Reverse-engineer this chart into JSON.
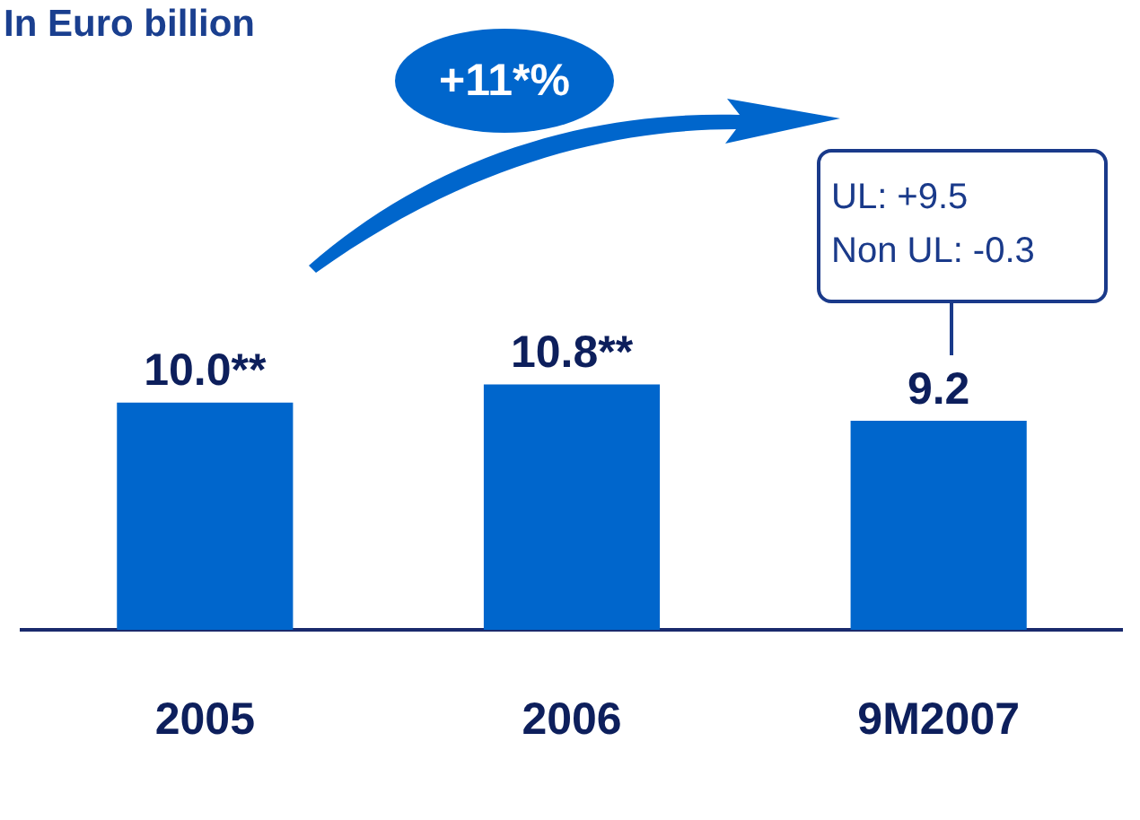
{
  "chart_data": {
    "type": "bar",
    "title": "In Euro billion",
    "categories": [
      "2005",
      "2006",
      "9M2007"
    ],
    "values": [
      10.0,
      10.8,
      9.2
    ],
    "value_labels": [
      "10.0**",
      "10.8**",
      "9.2"
    ],
    "color": "#0066cc",
    "grid": false,
    "legend": false,
    "annotations": [
      "+11*%",
      "UL: +9.5",
      "Non UL: -0.3"
    ]
  }
}
